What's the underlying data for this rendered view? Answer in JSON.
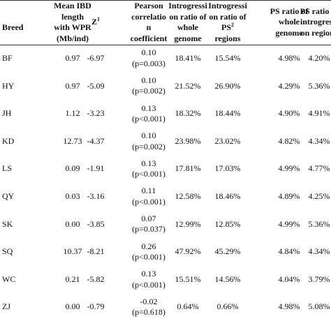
{
  "table": {
    "header": [
      {
        "lines": [
          "Breed"
        ]
      },
      {
        "lines": [
          "Mean IBD",
          "length",
          "with WPR",
          "(Mb/ind)"
        ]
      },
      {
        "lines": [
          {
            "text": "Z",
            "sup": "1"
          }
        ]
      },
      {
        "lines": [
          "Pearson",
          "correlatio",
          "n",
          "coefficient"
        ]
      },
      {
        "lines": [
          "Introgressi",
          "on ratio of",
          "whole",
          "genome"
        ]
      },
      {
        "lines": [
          "Introgressi",
          "on ratio of",
          {
            "text": "PS",
            "sup": "2"
          },
          "regions"
        ]
      },
      {
        "lines": [
          "PS ratio of",
          "whole",
          "genome"
        ]
      },
      {
        "lines": [
          "PS ratio of",
          "introgressi",
          "on regions"
        ]
      }
    ],
    "rows": [
      [
        "BF",
        "0.97",
        "-6.97",
        [
          "0.10",
          "(p=0.003)"
        ],
        "18.41%",
        "15.54%",
        "4.98%",
        "4.20%"
      ],
      [
        "HY",
        "0.97",
        "-5.09",
        [
          "0.10",
          "(p=0.002)"
        ],
        "21.52%",
        "26.90%",
        "4.29%",
        "5.36%"
      ],
      [
        "JH",
        "1.12",
        "-3.23",
        [
          "0.13",
          "(p<0.001)"
        ],
        "18.32%",
        "18.44%",
        "4.90%",
        "4.91%"
      ],
      [
        "KD",
        "12.73",
        "-4.37",
        [
          "0.10",
          "(p=0.002)"
        ],
        "23.98%",
        "23.02%",
        "4.82%",
        "4.34%"
      ],
      [
        "LS",
        "0.09",
        "-1.91",
        [
          "0.13",
          "(p<0.001)"
        ],
        "17.81%",
        "17.03%",
        "4.99%",
        "4.77%"
      ],
      [
        "QY",
        "0.03",
        "-3.16",
        [
          "0.11",
          "(p<0.001)"
        ],
        "12.58%",
        "18.46%",
        "4.89%",
        "4.25%"
      ],
      [
        "SK",
        "0.00",
        "-3.85",
        [
          "0.07",
          "(p=0.037)"
        ],
        "12.99%",
        "12.85%",
        "4.99%",
        "5.36%"
      ],
      [
        "SQ",
        "10.37",
        "-8.21",
        [
          "0.26",
          "(p<0.001)"
        ],
        "47.92%",
        "45.29%",
        "4.84%",
        "4.34%"
      ],
      [
        "WC",
        "0.21",
        "-5.82",
        [
          "0.13",
          "(p<0.001)"
        ],
        "15.51%",
        "14.56%",
        "4.04%",
        "3.79%"
      ],
      [
        "ZJ",
        "0.00",
        "-0.79",
        [
          "-0.02",
          "(p=0.618)"
        ],
        "0.64%",
        "0.66%",
        "4.98%",
        "5.08%"
      ]
    ]
  }
}
